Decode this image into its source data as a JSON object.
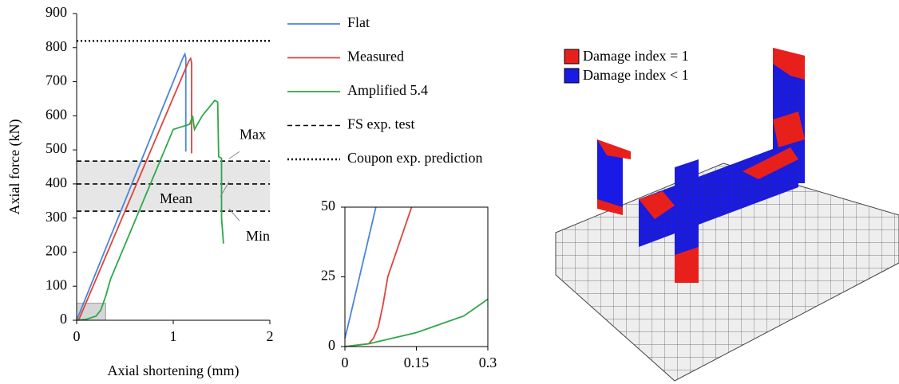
{
  "chart_data": [
    {
      "type": "line",
      "xlabel": "Axial shortening (mm)",
      "ylabel": "Axial force (kN)",
      "xlim": [
        0,
        2
      ],
      "xticks": [
        0,
        1,
        2
      ],
      "ylim": [
        0,
        900
      ],
      "yticks": [
        0,
        100,
        200,
        300,
        400,
        500,
        600,
        700,
        800,
        900
      ],
      "series": [
        {
          "name": "Flat",
          "color": "#4a86d8",
          "x": [
            0,
            1.1,
            1.12,
            1.13,
            1.13
          ],
          "values": [
            0,
            770,
            781,
            770,
            495
          ]
        },
        {
          "name": "Measured",
          "color": "#e0443a",
          "x": [
            0.02,
            1.16,
            1.18,
            1.19,
            1.19
          ],
          "values": [
            0,
            760,
            768,
            755,
            490
          ]
        },
        {
          "name": "Amplified 5.4",
          "color": "#2ea84a",
          "x": [
            0,
            0.1,
            0.2,
            0.25,
            0.3,
            0.35,
            1.0,
            1.17,
            1.2,
            1.22,
            1.3,
            1.43,
            1.46,
            1.47,
            1.5,
            1.5,
            1.52
          ],
          "values": [
            0,
            3,
            12,
            30,
            70,
            120,
            560,
            575,
            600,
            560,
            600,
            645,
            640,
            480,
            475,
            300,
            225
          ]
        }
      ],
      "hlines": [
        {
          "name": "FS exp. test",
          "style": "dashed",
          "values": [
            467,
            400,
            320
          ]
        },
        {
          "name": "Coupon exp. prediction",
          "style": "dotted",
          "values": [
            820
          ]
        }
      ],
      "annotations": [
        "Max",
        "Mean",
        "Min"
      ]
    },
    {
      "type": "line",
      "xlim": [
        0,
        0.3
      ],
      "xticks": [
        0,
        0.15,
        0.3
      ],
      "ylim": [
        0,
        50
      ],
      "yticks": [
        0,
        25,
        50
      ],
      "series": [
        {
          "color": "#4a86d8",
          "x": [
            0,
            0.01,
            0.065
          ],
          "values": [
            3,
            10,
            50
          ]
        },
        {
          "color": "#e0443a",
          "x": [
            0,
            0.05,
            0.06,
            0.07,
            0.08,
            0.09,
            0.14
          ],
          "values": [
            0,
            1,
            3,
            7,
            15,
            25,
            50
          ]
        },
        {
          "color": "#2ea84a",
          "x": [
            0,
            0.05,
            0.1,
            0.15,
            0.2,
            0.25,
            0.3
          ],
          "values": [
            0,
            1,
            3,
            5,
            8,
            11,
            17
          ]
        }
      ]
    }
  ],
  "model_legend": [
    {
      "label": "Damage index = 1",
      "color": "#e8201c"
    },
    {
      "label": "Damage index < 1",
      "color": "#1a1ae6"
    }
  ]
}
